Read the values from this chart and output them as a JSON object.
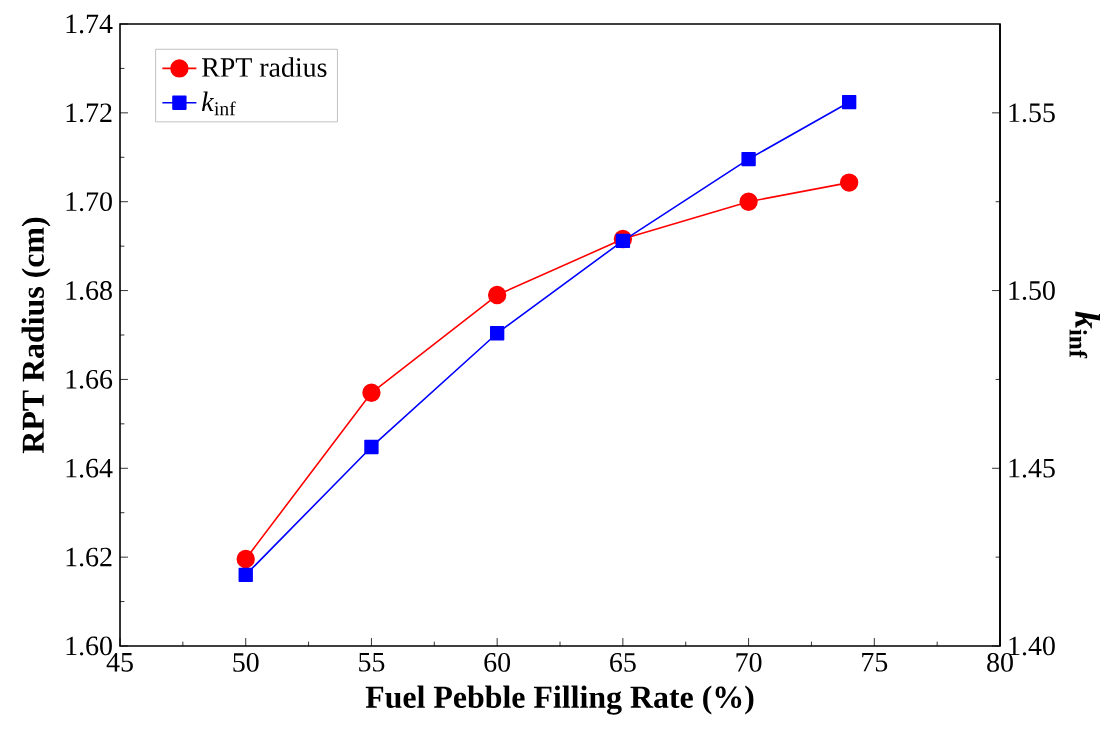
{
  "chart_data": {
    "type": "line",
    "xlabel": "Fuel Pebble Filling Rate (%)",
    "ylabel": "RPT Radius (cm)",
    "y2label": "*k*$_{inf}$",
    "x": [
      50,
      55,
      60,
      65,
      70,
      74
    ],
    "series": [
      {
        "name": "RPT radius",
        "color": "#ff0000",
        "marker": "circle",
        "values": [
          1.6196,
          1.657,
          1.679,
          1.6916,
          1.7,
          1.7043
        ]
      },
      {
        "name": "*k*$_{inf}$",
        "color": "#0000ff",
        "marker": "square",
        "axis": "y2",
        "values": [
          1.42,
          1.456,
          1.488,
          1.514,
          1.537,
          1.553
        ]
      }
    ],
    "xlim": [
      45,
      80
    ],
    "xticks": [
      45,
      50,
      55,
      60,
      65,
      70,
      75,
      80
    ],
    "ylim": [
      1.6,
      1.74
    ],
    "yticks": [
      {
        "value": 1.6,
        "label": "1.60"
      },
      1.62,
      1.64,
      1.66,
      1.68,
      {
        "value": 1.7,
        "label": "1.70"
      },
      1.72,
      1.74
    ],
    "y2lim": [
      1.4,
      1.575
    ],
    "y2ticks": [
      {
        "value": 1.4,
        "label": "1.40"
      },
      1.45,
      {
        "value": 1.5,
        "label": "1.50"
      },
      1.55
    ],
    "legend": "top left",
    "grid": false,
    "line_style": "solid"
  }
}
